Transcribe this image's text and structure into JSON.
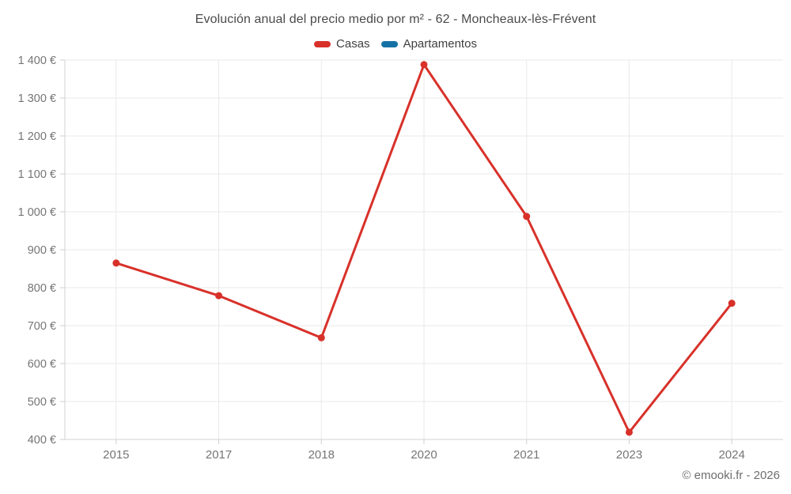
{
  "chart_data": {
    "type": "line",
    "title": "Evolución anual del precio medio por m² - 62 - Moncheaux-lès-Frévent",
    "categories": [
      "2015",
      "2017",
      "2018",
      "2020",
      "2021",
      "2023",
      "2024"
    ],
    "series": [
      {
        "name": "Casas",
        "color": "#d8312a",
        "values": [
          865,
          779,
          668,
          1388,
          988,
          419,
          759
        ]
      },
      {
        "name": "Apartamentos",
        "color": "#1572a5",
        "values": []
      }
    ],
    "xlabel": "",
    "ylabel": "",
    "ylim": [
      400,
      1400
    ],
    "ytick_values": [
      400,
      500,
      600,
      700,
      800,
      900,
      1000,
      1100,
      1200,
      1300,
      1400
    ],
    "ytick_labels": [
      "400 €",
      "500 €",
      "600 €",
      "700 €",
      "800 €",
      "900 €",
      "1 000 €",
      "1 100 €",
      "1 200 €",
      "1 300 €",
      "1 400 €"
    ],
    "grid": true,
    "legend_position": "top",
    "marker_radius": 4.5,
    "line_width": 3
  },
  "footer": {
    "copyright": "© emooki.fr - 2026"
  },
  "colors": {
    "grid": "#e9e9e9",
    "axis": "#d2d2d2",
    "tick": "#cfcfcf",
    "axis_label": "#757575",
    "title": "#4a4a4a"
  }
}
